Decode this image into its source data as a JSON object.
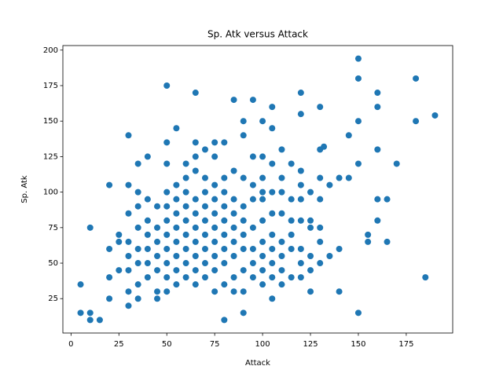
{
  "chart_data": {
    "type": "scatter",
    "title": "Sp. Atk versus Attack",
    "x_label": "Attack",
    "y_label": "Sp. Atk",
    "color": "#1f77b4",
    "xlim": [
      -4.25,
      199.25
    ],
    "ylim": [
      0.8,
      203.2
    ],
    "xticks": [
      0,
      25,
      50,
      75,
      100,
      125,
      150,
      175
    ],
    "yticks": [
      25,
      50,
      75,
      100,
      125,
      150,
      175,
      200
    ],
    "x": [
      5,
      5,
      10,
      10,
      15,
      10,
      20,
      20,
      20,
      20,
      25,
      25,
      25,
      30,
      30,
      30,
      30,
      35,
      35,
      40,
      40,
      50,
      50,
      55,
      65,
      85,
      95,
      90,
      90,
      80,
      100,
      100,
      105,
      105,
      105,
      110,
      120,
      120,
      130,
      130,
      132,
      140,
      145,
      150,
      150,
      150,
      150,
      150,
      155,
      155,
      160,
      160,
      160,
      160,
      160,
      165,
      165,
      170,
      180,
      180,
      185,
      190,
      145,
      140,
      140,
      135,
      130,
      130,
      125,
      125,
      120,
      115,
      110,
      100,
      30,
      30,
      30,
      30,
      35,
      35,
      35,
      35,
      35,
      35,
      40,
      40,
      40,
      40,
      40,
      45,
      45,
      45,
      45,
      45,
      45,
      45,
      50,
      50,
      50,
      50,
      50,
      50,
      50,
      50,
      50,
      55,
      55,
      55,
      55,
      55,
      55,
      55,
      55,
      60,
      60,
      60,
      60,
      60,
      60,
      60,
      60,
      60,
      65,
      65,
      65,
      65,
      65,
      65,
      65,
      65,
      65,
      65,
      70,
      70,
      70,
      70,
      70,
      70,
      70,
      70,
      70,
      75,
      75,
      75,
      75,
      75,
      75,
      75,
      75,
      75,
      75,
      80,
      80,
      80,
      80,
      80,
      80,
      80,
      80,
      80,
      85,
      85,
      85,
      85,
      85,
      85,
      85,
      85,
      90,
      90,
      90,
      90,
      90,
      90,
      90,
      90,
      95,
      95,
      95,
      95,
      95,
      95,
      95,
      100,
      100,
      100,
      100,
      100,
      100,
      100,
      105,
      105,
      105,
      105,
      105,
      105,
      105,
      110,
      110,
      110,
      110,
      110,
      110,
      115,
      115,
      115,
      115,
      115,
      120,
      120,
      120,
      120,
      120,
      120,
      125,
      125,
      125,
      125,
      130,
      130,
      130,
      135
    ],
    "y": [
      35,
      15,
      15,
      10,
      10,
      75,
      105,
      60,
      40,
      25,
      45,
      65,
      70,
      140,
      105,
      85,
      20,
      120,
      100,
      125,
      95,
      175,
      135,
      145,
      170,
      165,
      165,
      150,
      15,
      10,
      150,
      125,
      160,
      145,
      25,
      130,
      170,
      155,
      160,
      130,
      132,
      30,
      140,
      194,
      180,
      150,
      120,
      15,
      65,
      70,
      170,
      160,
      130,
      95,
      80,
      95,
      65,
      120,
      180,
      150,
      40,
      154,
      110,
      110,
      60,
      55,
      95,
      75,
      30,
      80,
      115,
      120,
      100,
      100,
      30,
      45,
      55,
      65,
      25,
      35,
      50,
      60,
      75,
      90,
      40,
      50,
      60,
      70,
      80,
      25,
      30,
      45,
      55,
      65,
      75,
      90,
      30,
      40,
      50,
      60,
      70,
      80,
      90,
      100,
      120,
      35,
      45,
      55,
      65,
      75,
      85,
      95,
      105,
      40,
      50,
      60,
      70,
      80,
      90,
      100,
      110,
      120,
      35,
      45,
      55,
      65,
      75,
      85,
      95,
      115,
      125,
      135,
      40,
      50,
      60,
      70,
      80,
      90,
      100,
      110,
      130,
      30,
      45,
      55,
      65,
      75,
      85,
      95,
      105,
      125,
      135,
      35,
      50,
      60,
      70,
      80,
      90,
      100,
      110,
      135,
      30,
      40,
      55,
      65,
      75,
      85,
      95,
      115,
      30,
      45,
      60,
      70,
      80,
      90,
      110,
      140,
      40,
      50,
      60,
      75,
      95,
      105,
      125,
      35,
      45,
      55,
      65,
      80,
      95,
      110,
      40,
      50,
      60,
      70,
      85,
      100,
      120,
      35,
      45,
      55,
      65,
      85,
      110,
      40,
      60,
      70,
      80,
      95,
      40,
      50,
      60,
      80,
      95,
      105,
      45,
      55,
      75,
      100,
      50,
      65,
      110,
      105
    ]
  }
}
